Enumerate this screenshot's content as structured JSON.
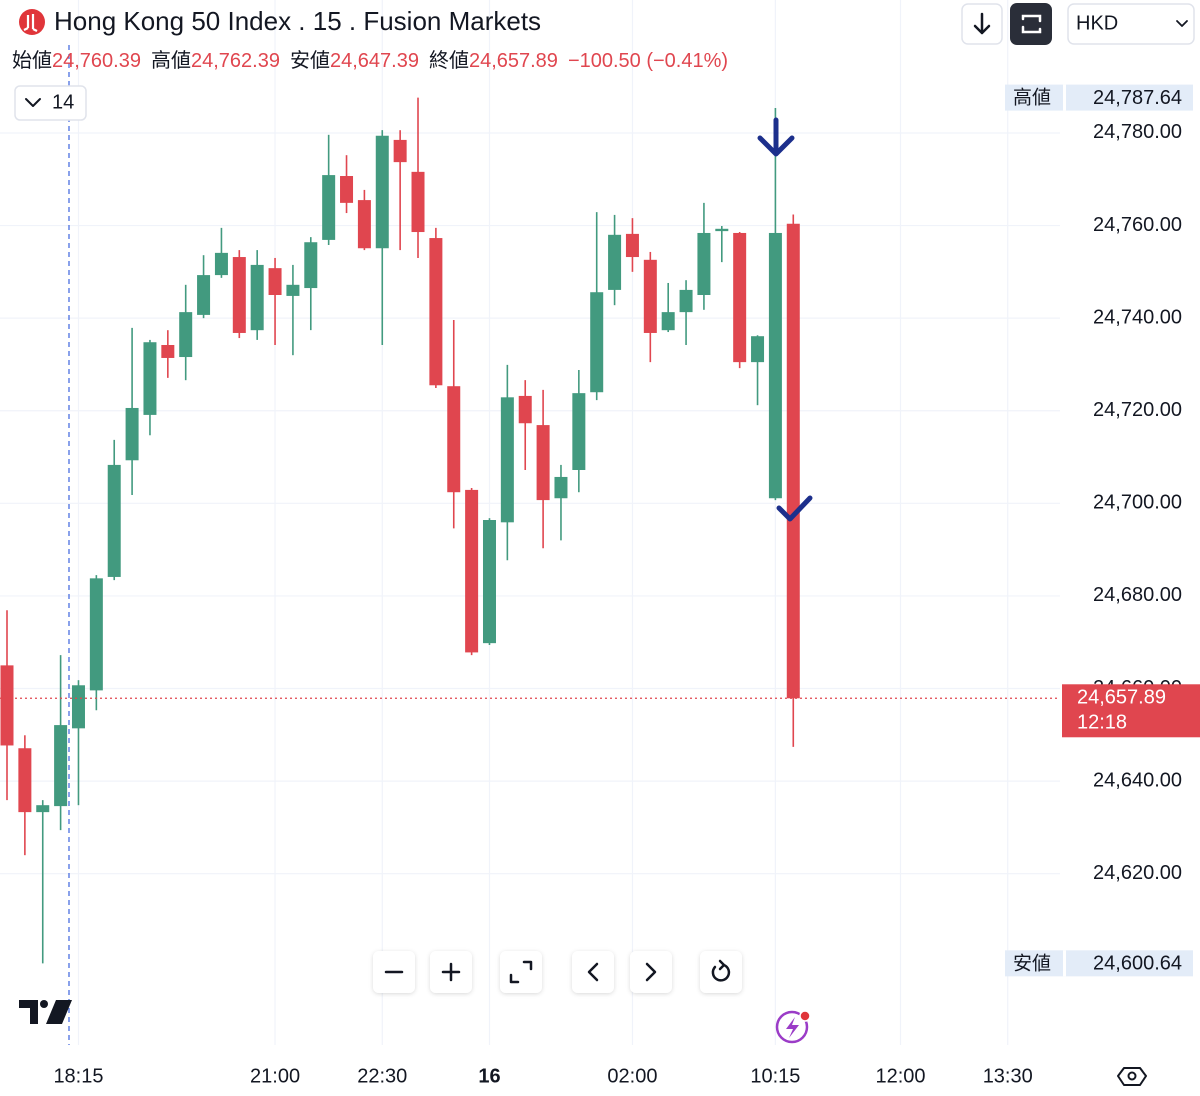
{
  "chart_data": {
    "type": "candlestick",
    "title": "Hong Kong 50 Index . 15 . Fusion Markets",
    "currency": "HKD",
    "interval_button": "14",
    "header": {
      "items": [
        {
          "label": "始値",
          "value": "24,760.39"
        },
        {
          "label": "高値",
          "value": "24,762.39"
        },
        {
          "label": "安値",
          "value": "24,647.39"
        },
        {
          "label": "終値",
          "value": "24,657.89"
        }
      ],
      "change": "−100.50 (−0.41%)"
    },
    "up_color": "#429a7f",
    "down_color": "#e0464f",
    "grid": true,
    "ylim": [
      24583,
      24799
    ],
    "yticks": [
      {
        "value": 24620,
        "label": "24,620.00"
      },
      {
        "value": 24640,
        "label": "24,640.00"
      },
      {
        "value": 24660,
        "label": "24,660.00"
      },
      {
        "value": 24680,
        "label": "24,680.00"
      },
      {
        "value": 24700,
        "label": "24,700.00"
      },
      {
        "value": 24720,
        "label": "24,720.00"
      },
      {
        "value": 24740,
        "label": "24,740.00"
      },
      {
        "value": 24760,
        "label": "24,760.00"
      },
      {
        "value": 24780,
        "label": "24,780.00"
      }
    ],
    "range_labels": [
      {
        "name": "高値",
        "value": 24787.64,
        "label": "24,787.64"
      },
      {
        "name": "安値",
        "value": 24600.64,
        "label": "24,600.64"
      }
    ],
    "price_label": {
      "value": 24657.89,
      "label": "24,657.89"
    },
    "countdown": "12:18",
    "categories": [
      null,
      null,
      null,
      null,
      "18:15",
      null,
      null,
      null,
      null,
      null,
      null,
      null,
      null,
      null,
      null,
      "21:00",
      null,
      null,
      null,
      null,
      null,
      "22:30",
      null,
      null,
      null,
      null,
      null,
      "16",
      null,
      null,
      null,
      null,
      null,
      null,
      null,
      "02:00",
      null,
      null,
      null,
      null,
      null,
      null,
      null,
      "10:15",
      null,
      null,
      null,
      null,
      null,
      null,
      "12:00",
      null,
      null,
      null,
      null,
      null,
      "13:30",
      null,
      null
    ],
    "open": [
      24665.0,
      24647.1,
      24633.3,
      24634.6,
      24651.4,
      24659.6,
      24684.1,
      24709.3,
      24719.1,
      24734.2,
      24731.6,
      24740.7,
      24749.3,
      24753.2,
      24737.4,
      24750.8,
      24744.8,
      24746.5,
      24756.9,
      24770.7,
      24765.5,
      24755.1,
      24778.5,
      24771.6,
      24757.3,
      24725.3,
      24702.9,
      24669.8,
      24695.9,
      24723.2,
      24716.9,
      24701.1,
      24707.2,
      24724.0,
      24746.1,
      24758.2,
      24752.6,
      24737.4,
      24741.3,
      24745.0,
      24758.8,
      24758.4,
      24730.5,
      24701.1,
      24760.39,
      null,
      null,
      null,
      null,
      null,
      null,
      null,
      null,
      null,
      null,
      null,
      null,
      null,
      null
    ],
    "high": [
      24676.9,
      24649.9,
      24635.9,
      24667.2,
      24661.8,
      24684.5,
      24713.7,
      24737.9,
      24735.3,
      24737.4,
      24747.2,
      24753.6,
      24759.5,
      24754.7,
      24754.7,
      24753.0,
      24751.5,
      24757.5,
      24779.6,
      24775.2,
      24767.7,
      24780.6,
      24780.6,
      24787.64,
      24759.5,
      24739.6,
      24703.3,
      24696.8,
      24729.9,
      24726.6,
      24724.5,
      24708.3,
      24728.8,
      24762.9,
      24762.3,
      24761.6,
      24754.3,
      24747.6,
      24748.2,
      24764.9,
      24759.9,
      24758.6,
      24736.3,
      24785.4,
      24762.39,
      null,
      null,
      null,
      null,
      null,
      null,
      null,
      null,
      null,
      null,
      null,
      null,
      null,
      null
    ],
    "low": [
      24635.9,
      24624.0,
      24600.64,
      24629.4,
      24634.8,
      24655.3,
      24683.4,
      24701.8,
      24714.7,
      24727.1,
      24726.6,
      24740.0,
      24748.7,
      24735.7,
      24735.3,
      24734.2,
      24732.0,
      24737.4,
      24755.8,
      24762.7,
      24754.7,
      24734.2,
      24754.7,
      24753.0,
      24724.9,
      24694.6,
      24667.2,
      24669.4,
      24687.7,
      24707.2,
      24690.3,
      24692.0,
      24702.4,
      24722.3,
      24742.8,
      24750.0,
      24730.5,
      24737.0,
      24734.2,
      24741.8,
      24752.1,
      24729.2,
      24721.2,
      24700.7,
      24647.39,
      null,
      null,
      null,
      null,
      null,
      null,
      null,
      null,
      null,
      null,
      null,
      null,
      null,
      null
    ],
    "close": [
      24647.7,
      24633.3,
      24634.8,
      24652.1,
      24660.7,
      24683.8,
      24708.3,
      24720.6,
      24734.8,
      24731.4,
      24741.3,
      24749.3,
      24754.1,
      24736.8,
      24751.5,
      24745.0,
      24747.2,
      24756.4,
      24770.9,
      24764.9,
      24755.1,
      24779.4,
      24773.7,
      24758.6,
      24725.5,
      24702.4,
      24667.8,
      24696.4,
      24722.9,
      24717.3,
      24700.7,
      24705.7,
      24723.8,
      24745.6,
      24758.0,
      24753.2,
      24736.8,
      24741.3,
      24746.1,
      24758.4,
      24759.3,
      24730.5,
      24736.1,
      24758.4,
      24657.89,
      null,
      null,
      null,
      null,
      null,
      null,
      null,
      null,
      null,
      null,
      null,
      null,
      null,
      null
    ]
  }
}
